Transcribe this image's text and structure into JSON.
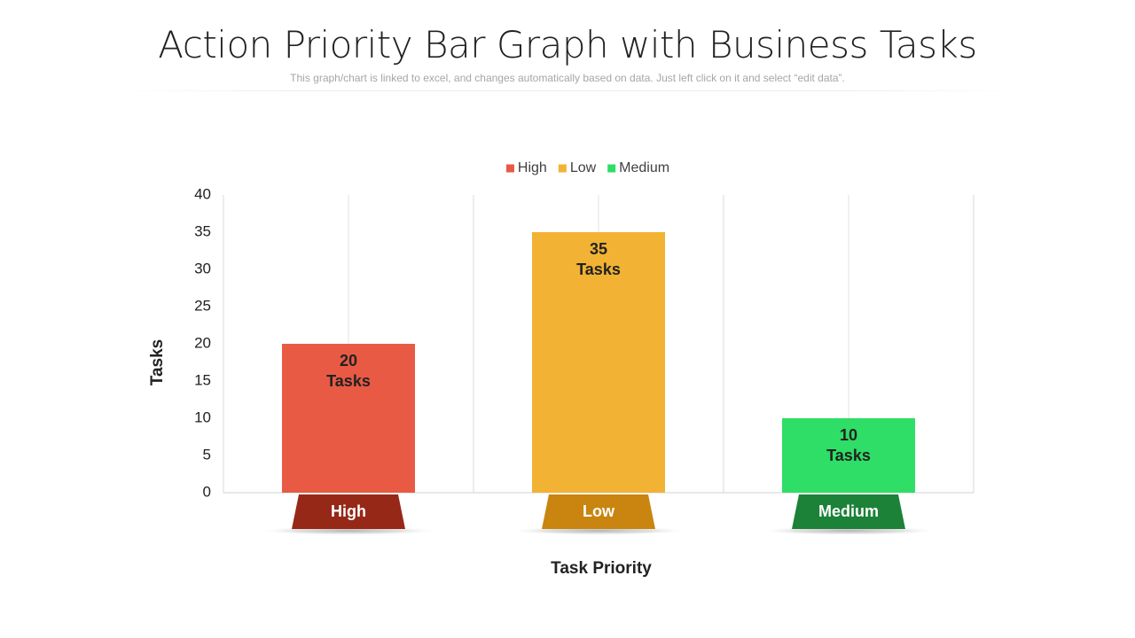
{
  "slide": {
    "title": "Action Priority Bar Graph with Business Tasks",
    "subtitle": "This graph/chart is linked to excel, and changes automatically based on data. Just left click on it and select “edit data”."
  },
  "chart_data": {
    "type": "bar",
    "xlabel": "Task Priority",
    "ylabel": "Tasks",
    "ylim": [
      0,
      40
    ],
    "yticks": [
      0,
      5,
      10,
      15,
      20,
      25,
      30,
      35,
      40
    ],
    "grid": "vertical",
    "legend_position": "top",
    "categories": [
      "High",
      "Low",
      "Medium"
    ],
    "values": [
      20,
      35,
      10
    ],
    "value_labels": [
      {
        "value": "20",
        "unit": "Tasks"
      },
      {
        "value": "35",
        "unit": "Tasks"
      },
      {
        "value": "10",
        "unit": "Tasks"
      }
    ],
    "series": [
      {
        "name": "High",
        "color": "#e85a44",
        "tag_color": "#962818"
      },
      {
        "name": "Low",
        "color": "#f2b234",
        "tag_color": "#c9850f"
      },
      {
        "name": "Medium",
        "color": "#2ede66",
        "tag_color": "#1c8237"
      }
    ]
  }
}
